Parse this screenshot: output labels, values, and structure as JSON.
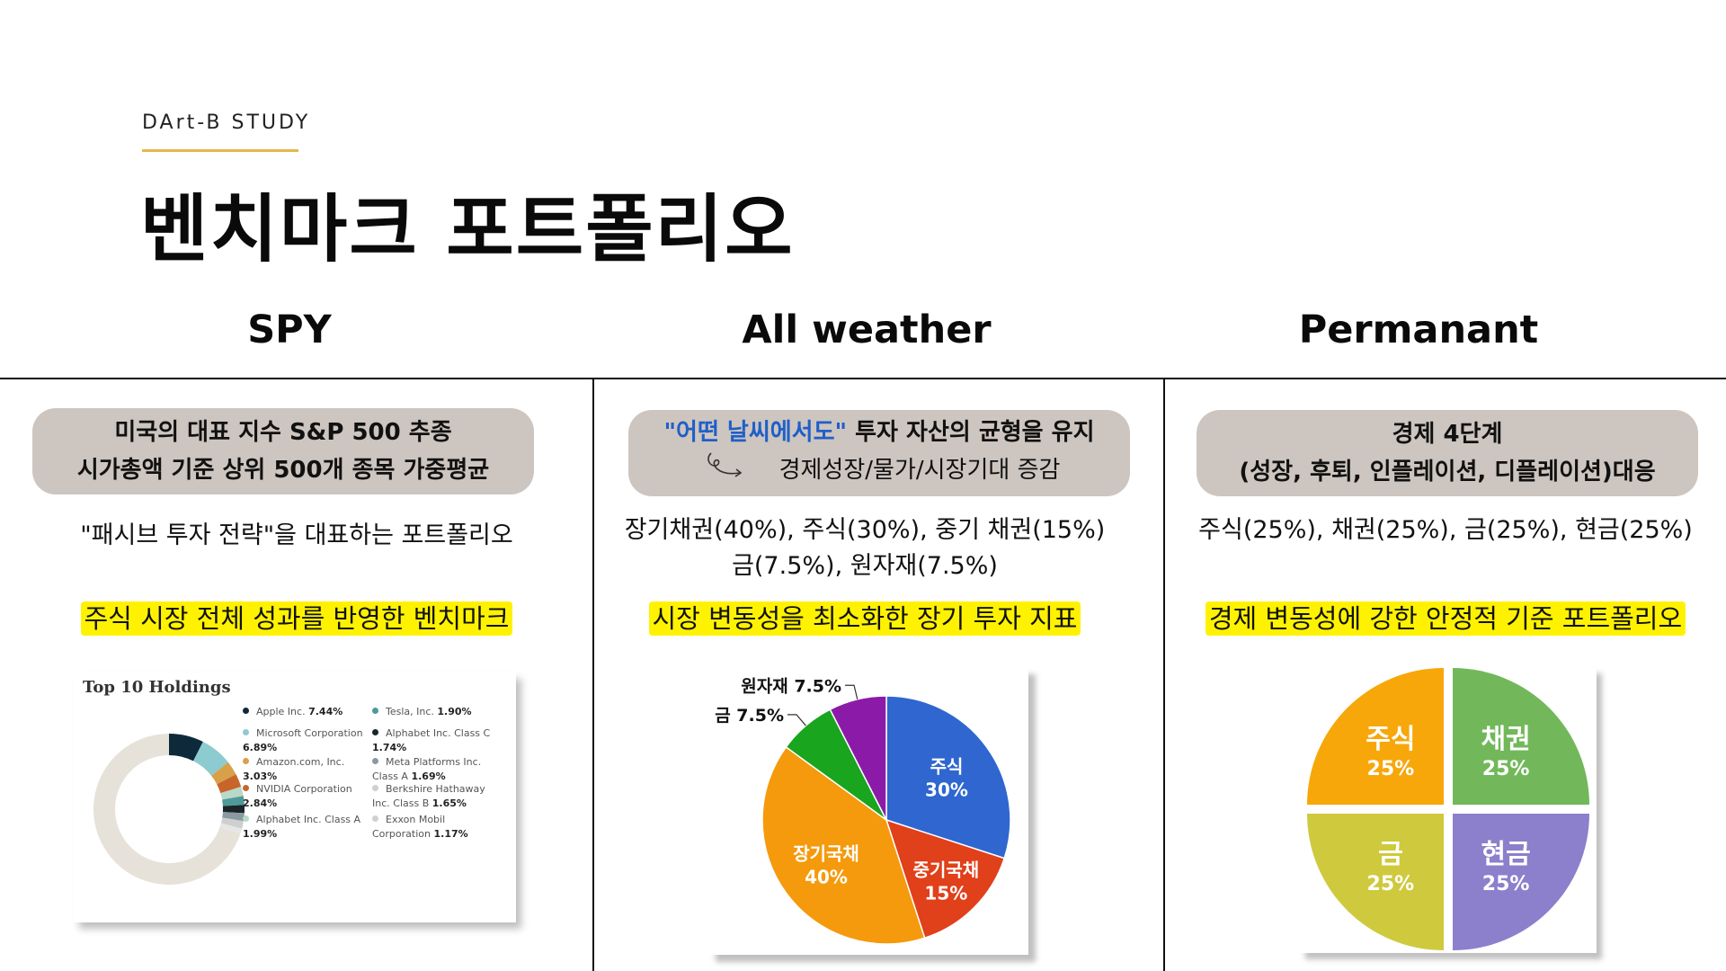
{
  "header": {
    "brand": "DArt-B STUDY",
    "title": "벤치마크 포트폴리오"
  },
  "columns": [
    {
      "name": "SPY",
      "pill_line1": "미국의 대표 지수 S&P 500 추종",
      "pill_line2": "시가총액 기준 상위 500개 종목 가중평균",
      "desc_line1": "\"패시브 투자 전략\"을 대표하는 포트폴리오",
      "highlight": "주식 시장 전체 성과를 반영한 벤치마크"
    },
    {
      "name": "All weather",
      "pill_quote": "\"어떤 날씨에서도\"",
      "pill_line1_rest": " 투자 자산의 균형을 유지",
      "pill_line2": "경제성장/물가/시장기대  증감",
      "desc_line1": "장기채권(40%), 주식(30%), 중기 채권(15%)",
      "desc_line2": "금(7.5%), 원자재(7.5%)",
      "highlight": "시장 변동성을 최소화한 장기 투자 지표"
    },
    {
      "name": "Permanant",
      "pill_line1": "경제 4단계",
      "pill_line2": "(성장, 후퇴, 인플레이션, 디플레이션)대응",
      "desc_line1": "주식(25%), 채권(25%), 금(25%), 현금(25%)",
      "highlight": "경제 변동성에 강한 안정적 기준 포트폴리오"
    }
  ],
  "chart_data": [
    {
      "type": "pie",
      "variant": "donut",
      "title": "Top 10 Holdings",
      "series": [
        {
          "name": "Apple Inc.",
          "value": 7.44,
          "value_label": "7.44%",
          "color": "#0e2a3a"
        },
        {
          "name": "Microsoft Corporation",
          "value": 6.89,
          "value_label": "6.89%",
          "color": "#8ccbd0"
        },
        {
          "name": "Amazon.com, Inc.",
          "value": 3.03,
          "value_label": "3.03%",
          "color": "#d9a04a"
        },
        {
          "name": "NVIDIA Corporation",
          "value": 2.84,
          "value_label": "2.84%",
          "color": "#c7652a"
        },
        {
          "name": "Alphabet Inc. Class A",
          "value": 1.99,
          "value_label": "1.99%",
          "color": "#b8d8c8"
        },
        {
          "name": "Tesla, Inc.",
          "value": 1.9,
          "value_label": "1.90%",
          "color": "#4f9a98"
        },
        {
          "name": "Alphabet Inc. Class C",
          "value": 1.74,
          "value_label": "1.74%",
          "color": "#1b2429"
        },
        {
          "name": "Meta Platforms Inc. Class A",
          "value": 1.69,
          "value_label": "1.69%",
          "color": "#8a9aa0"
        },
        {
          "name": "Berkshire Hathaway Inc. Class B",
          "value": 1.65,
          "value_label": "1.65%",
          "color": "#cfcfcf"
        },
        {
          "name": "Exxon Mobil Corporation",
          "value": 1.17,
          "value_label": "1.17%",
          "color": "#e6e6e6"
        }
      ],
      "remainder_color": "#e6e2d9"
    },
    {
      "type": "pie",
      "slices": [
        {
          "label": "주식",
          "value": 30,
          "value_label": "30%",
          "color": "#2f66d0"
        },
        {
          "label": "중기국채",
          "value": 15,
          "value_label": "15%",
          "color": "#e0401a"
        },
        {
          "label": "장기국채",
          "value": 40,
          "value_label": "40%",
          "color": "#f59a0c"
        },
        {
          "label": "금",
          "value": 7.5,
          "value_label": "7.5%",
          "color": "#19a51e"
        },
        {
          "label": "원자재",
          "value": 7.5,
          "value_label": "7.5%",
          "color": "#8c1aa8"
        }
      ]
    },
    {
      "type": "pie",
      "variant": "quadrant",
      "slices": [
        {
          "label": "주식",
          "value": 25,
          "value_label": "25%",
          "color": "#f7a70a"
        },
        {
          "label": "채권",
          "value": 25,
          "value_label": "25%",
          "color": "#72b85a"
        },
        {
          "label": "현금",
          "value": 25,
          "value_label": "25%",
          "color": "#8c7fcc"
        },
        {
          "label": "금",
          "value": 25,
          "value_label": "25%",
          "color": "#cfc93e"
        }
      ]
    }
  ]
}
